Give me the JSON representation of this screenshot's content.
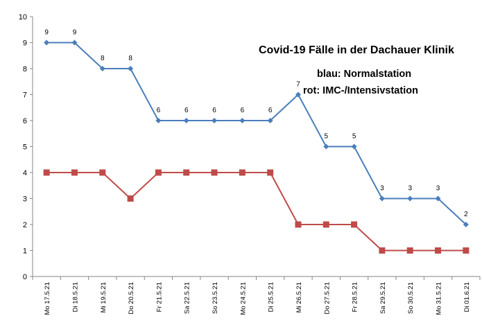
{
  "chart_data": {
    "type": "line",
    "title": "Covid-19 Fälle in  der Dachauer Klinik",
    "annotations": [
      "blau: Normalstation",
      "rot: IMC-/Intensivstation"
    ],
    "xlabel": "",
    "ylabel": "",
    "ylim": [
      0,
      10
    ],
    "yticks": [
      0,
      1,
      2,
      3,
      4,
      5,
      6,
      7,
      8,
      9,
      10
    ],
    "grid": false,
    "categories": [
      "Mo 17.5.21",
      "Di 18.5.21",
      "Mi 19.5.21",
      "Do 20.5.21",
      "Fr 21.5.21",
      "Sa 22.5.21",
      "So 23.5.21",
      "Mo 24.5.21",
      "Di 25.5.21",
      "Mi 26.5.21",
      "Do 27.5.21",
      "Fr 28.5.21",
      "Sa 29.5.21",
      "So 30.5.21",
      "Mo 31.5.21",
      "Di 01.6.21"
    ],
    "series": [
      {
        "values": [
          9,
          9,
          8,
          8,
          6,
          6,
          6,
          6,
          6,
          7,
          5,
          5,
          3,
          3,
          3,
          2
        ],
        "color": "#4a7ebb",
        "marker": "diamond",
        "show_labels": true
      },
      {
        "values": [
          4,
          4,
          4,
          3,
          4,
          4,
          4,
          4,
          4,
          2,
          2,
          2,
          1,
          1,
          1,
          1
        ],
        "color": "#be4b48",
        "marker": "square",
        "show_labels": false
      }
    ]
  }
}
